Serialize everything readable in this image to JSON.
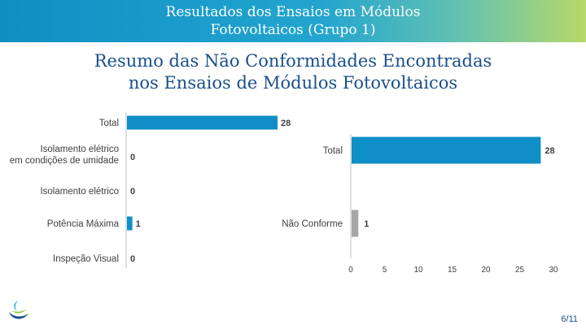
{
  "header": {
    "line1": "Resultados dos Ensaios em Módulos",
    "line2": "Fotovoltaicos (Grupo 1)"
  },
  "title": {
    "line1": "Resumo das Não Conformidades Encontradas",
    "line2": "nos Ensaios de Módulos Fotovoltaicos"
  },
  "footer": {
    "page": "6/11"
  },
  "icons": {
    "logo": "brand-logo-icon"
  },
  "colors": {
    "bar_blue": "#0f8ec7",
    "bar_gray": "#a6a6a6",
    "title_blue": "#1a4f8c"
  },
  "chart_data": [
    {
      "type": "bar",
      "orientation": "horizontal",
      "categories": [
        "Total",
        "Isolamento elétrico em condições de umidade",
        "Isolamento elétrico",
        "Potência Máxima",
        "Inspeção Visual"
      ],
      "values": [
        28,
        0,
        0,
        1,
        0
      ],
      "xlim": [
        0,
        28
      ],
      "grid": false,
      "data_labels": true
    },
    {
      "type": "bar",
      "orientation": "horizontal",
      "categories": [
        "Total",
        "Não Conforme"
      ],
      "values": [
        28,
        1
      ],
      "xlim": [
        0,
        30
      ],
      "xticks": [
        0,
        5,
        10,
        15,
        20,
        25,
        30
      ],
      "grid": false,
      "data_labels": true
    }
  ]
}
